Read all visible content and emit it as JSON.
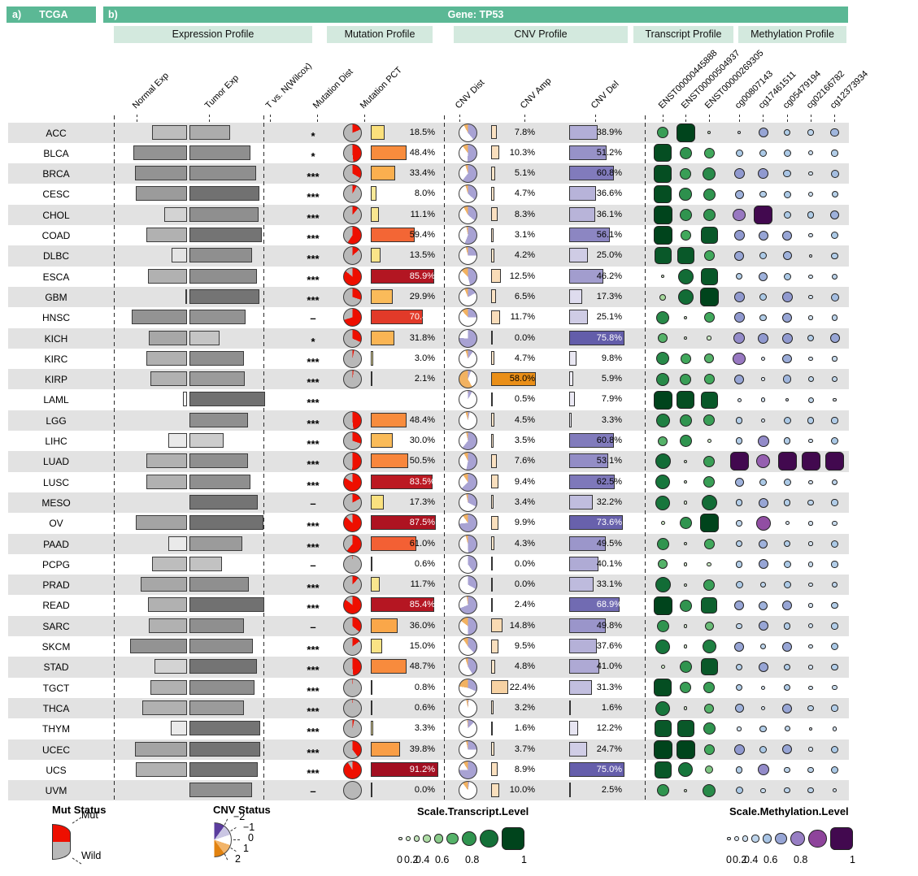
{
  "header": {
    "a_label": "a)",
    "a_title": "TCGA",
    "b_label": "b)",
    "b_title": "Gene: TP53"
  },
  "profiles": [
    {
      "label": "Expression Profile"
    },
    {
      "label": "Mutation Profile"
    },
    {
      "label": "CNV Profile"
    },
    {
      "label": "Transcript Profile"
    },
    {
      "label": "Methylation Profile"
    }
  ],
  "chart_data": {
    "type": "table",
    "title": "Gene: TP53",
    "dataset": "TCGA",
    "columns": [
      "Normal Exp",
      "Tumor Exp",
      "T vs. N(Wilcox)",
      "Mutation Dist",
      "Mutation PCT",
      "CNV Dist",
      "CNV Amp",
      "CNV Del",
      "ENST00000445888",
      "ENST00000504937",
      "ENST00000269305",
      "cg00807143",
      "cg17461511",
      "cg05479194",
      "cg02166782",
      "cg12373934"
    ],
    "rows": [
      {
        "label": "ACC",
        "sig": "*",
        "normal": [
          43,
          0.35
        ],
        "tumor": [
          50,
          0.45
        ],
        "mut_pct": 18.5,
        "cnv_amp": 7.8,
        "cnv_del": 38.9,
        "transcript": [
          0.55,
          1,
          0.07
        ],
        "methylation": [
          0.07,
          0.45,
          0.28,
          0.22,
          0.38
        ]
      },
      {
        "label": "BLCA",
        "sig": "*",
        "normal": [
          66,
          0.6
        ],
        "tumor": [
          75,
          0.62
        ],
        "mut_pct": 48.4,
        "cnv_amp": 10.3,
        "cnv_del": 51.2,
        "transcript": [
          0.95,
          0.6,
          0.5
        ],
        "methylation": [
          0.3,
          0.3,
          0.3,
          0.15,
          0.27
        ]
      },
      {
        "label": "BRCA",
        "sig": "***",
        "normal": [
          64,
          0.6
        ],
        "tumor": [
          82,
          0.62
        ],
        "mut_pct": 33.4,
        "cnv_amp": 5.1,
        "cnv_del": 60.8,
        "transcript": [
          0.95,
          0.55,
          0.65
        ],
        "methylation": [
          0.5,
          0.5,
          0.32,
          0.12,
          0.35
        ]
      },
      {
        "label": "CESC",
        "sig": "***",
        "normal": [
          63,
          0.55
        ],
        "tumor": [
          86,
          0.8
        ],
        "mut_pct": 8.0,
        "cnv_amp": 4.7,
        "cnv_del": 36.6,
        "transcript": [
          0.95,
          0.62,
          0.6
        ],
        "methylation": [
          0.4,
          0.27,
          0.3,
          0.15,
          0.25
        ]
      },
      {
        "label": "CHOL",
        "sig": "***",
        "normal": [
          28,
          0.22
        ],
        "tumor": [
          85,
          0.62
        ],
        "mut_pct": 11.1,
        "cnv_amp": 8.3,
        "cnv_del": 36.1,
        "transcript": [
          1,
          0.6,
          0.6
        ],
        "methylation": [
          0.62,
          1,
          0.3,
          0.28,
          0.4
        ]
      },
      {
        "label": "COAD",
        "sig": "***",
        "normal": [
          50,
          0.42
        ],
        "tumor": [
          89,
          0.78
        ],
        "mut_pct": 59.4,
        "cnv_amp": 3.1,
        "cnv_del": 56.1,
        "transcript": [
          1,
          0.5,
          0.9
        ],
        "methylation": [
          0.5,
          0.45,
          0.45,
          0.12,
          0.3
        ]
      },
      {
        "label": "DLBC",
        "sig": "***",
        "normal": [
          19,
          0.12
        ],
        "tumor": [
          77,
          0.62
        ],
        "mut_pct": 13.5,
        "cnv_amp": 4.2,
        "cnv_del": 25.0,
        "transcript": [
          0.9,
          0.9,
          0.5
        ],
        "methylation": [
          0.45,
          0.3,
          0.4,
          0.07,
          0.27
        ]
      },
      {
        "label": "ESCA",
        "sig": "***",
        "normal": [
          48,
          0.42
        ],
        "tumor": [
          83,
          0.62
        ],
        "mut_pct": 85.9,
        "cnv_amp": 12.5,
        "cnv_del": 46.2,
        "transcript": [
          0.07,
          0.8,
          0.9
        ],
        "methylation": [
          0.27,
          0.4,
          0.3,
          0.12,
          0.22
        ]
      },
      {
        "label": "GBM",
        "sig": "***",
        "normal": [
          2,
          0.42
        ],
        "tumor": [
          86,
          0.78
        ],
        "mut_pct": 29.9,
        "cnv_amp": 6.5,
        "cnv_del": 17.3,
        "transcript": [
          0.25,
          0.8,
          1
        ],
        "methylation": [
          0.5,
          0.3,
          0.5,
          0.12,
          0.35
        ]
      },
      {
        "label": "HNSC",
        "sig": "–",
        "normal": [
          68,
          0.6
        ],
        "tumor": [
          69,
          0.6
        ],
        "mut_pct": 70.4,
        "cnv_amp": 11.7,
        "cnv_del": 25.1,
        "transcript": [
          0.65,
          0.07,
          0.5
        ],
        "methylation": [
          0.5,
          0.27,
          0.45,
          0.12,
          0.22
        ]
      },
      {
        "label": "KICH",
        "sig": "*",
        "normal": [
          47,
          0.48
        ],
        "tumor": [
          37,
          0.3
        ],
        "mut_pct": 31.8,
        "cnv_amp": 0.0,
        "cnv_del": 75.8,
        "transcript": [
          0.45,
          0.07,
          0.12
        ],
        "methylation": [
          0.55,
          0.5,
          0.5,
          0.27,
          0.45
        ]
      },
      {
        "label": "KIRC",
        "sig": "***",
        "normal": [
          50,
          0.42
        ],
        "tumor": [
          67,
          0.62
        ],
        "mut_pct": 3.0,
        "cnv_amp": 4.7,
        "cnv_del": 9.8,
        "transcript": [
          0.65,
          0.5,
          0.45
        ],
        "methylation": [
          0.62,
          0.1,
          0.42,
          0.12,
          0.17
        ]
      },
      {
        "label": "KIRP",
        "sig": "***",
        "normal": [
          45,
          0.42
        ],
        "tumor": [
          68,
          0.55
        ],
        "mut_pct": 2.1,
        "cnv_amp": 58.0,
        "cnv_del": 5.9,
        "transcript": [
          0.65,
          0.55,
          0.5
        ],
        "methylation": [
          0.45,
          0.08,
          0.38,
          0.2,
          0.2
        ]
      },
      {
        "label": "LAML",
        "sig": "***",
        "normal": [
          5,
          0.03
        ],
        "tumor": [
          93,
          0.8
        ],
        "mut_pct": null,
        "cnv_amp": 0.5,
        "cnv_del": 7.9,
        "transcript": [
          1,
          0.95,
          0.9
        ],
        "methylation": [
          0.1,
          0.12,
          0.08,
          0.2,
          0.06
        ]
      },
      {
        "label": "LGG",
        "sig": "***",
        "normal": [
          0,
          0
        ],
        "tumor": [
          72,
          0.62
        ],
        "mut_pct": 48.4,
        "cnv_amp": 4.5,
        "cnv_del": 3.3,
        "transcript": [
          0.7,
          0.6,
          0.55
        ],
        "methylation": [
          0.27,
          0.12,
          0.3,
          0.27,
          0.27
        ]
      },
      {
        "label": "LIHC",
        "sig": "***",
        "normal": [
          23,
          0.08
        ],
        "tumor": [
          42,
          0.26
        ],
        "mut_pct": 30.0,
        "cnv_amp": 3.5,
        "cnv_del": 60.8,
        "transcript": [
          0.45,
          0.6,
          0.1
        ],
        "methylation": [
          0.27,
          0.55,
          0.27,
          0.12,
          0.3
        ]
      },
      {
        "label": "LUAD",
        "sig": "***",
        "normal": [
          50,
          0.42
        ],
        "tumor": [
          72,
          0.62
        ],
        "mut_pct": 50.5,
        "cnv_amp": 7.6,
        "cnv_del": 53.1,
        "transcript": [
          0.8,
          0.07,
          0.55
        ],
        "methylation": [
          1,
          0.7,
          1,
          1,
          1
        ]
      },
      {
        "label": "LUSC",
        "sig": "***",
        "normal": [
          50,
          0.42
        ],
        "tumor": [
          75,
          0.62
        ],
        "mut_pct": 83.5,
        "cnv_amp": 9.4,
        "cnv_del": 62.5,
        "transcript": [
          0.75,
          0.07,
          0.55
        ],
        "methylation": [
          0.4,
          0.3,
          0.3,
          0.12,
          0.22
        ]
      },
      {
        "label": "MESO",
        "sig": "–",
        "normal": [
          0,
          0
        ],
        "tumor": [
          84,
          0.78
        ],
        "mut_pct": 17.3,
        "cnv_amp": 3.4,
        "cnv_del": 32.2,
        "transcript": [
          0.75,
          0.07,
          0.8
        ],
        "methylation": [
          0.27,
          0.45,
          0.27,
          0.22,
          0.27
        ]
      },
      {
        "label": "OV",
        "sig": "***",
        "normal": [
          63,
          0.5
        ],
        "tumor": [
          91,
          0.8
        ],
        "mut_pct": 87.5,
        "cnv_amp": 9.9,
        "cnv_del": 73.6,
        "transcript": [
          0.1,
          0.6,
          1
        ],
        "methylation": [
          0.22,
          0.75,
          0.1,
          0.12,
          0.17
        ]
      },
      {
        "label": "PAAD",
        "sig": "***",
        "normal": [
          23,
          0.08
        ],
        "tumor": [
          65,
          0.55
        ],
        "mut_pct": 61.0,
        "cnv_amp": 4.3,
        "cnv_del": 49.5,
        "transcript": [
          0.6,
          0.07,
          0.5
        ],
        "methylation": [
          0.27,
          0.4,
          0.27,
          0.12,
          0.3
        ]
      },
      {
        "label": "PCPG",
        "sig": "–",
        "normal": [
          43,
          0.35
        ],
        "tumor": [
          40,
          0.32
        ],
        "mut_pct": 0.6,
        "cnv_amp": 0.0,
        "cnv_del": 40.1,
        "transcript": [
          0.45,
          0.07,
          0.12
        ],
        "methylation": [
          0.27,
          0.45,
          0.3,
          0.17,
          0.27
        ]
      },
      {
        "label": "PRAD",
        "sig": "***",
        "normal": [
          57,
          0.48
        ],
        "tumor": [
          73,
          0.62
        ],
        "mut_pct": 11.7,
        "cnv_amp": 0.0,
        "cnv_del": 33.1,
        "transcript": [
          0.8,
          0.07,
          0.55
        ],
        "methylation": [
          0.3,
          0.22,
          0.3,
          0.12,
          0.22
        ]
      },
      {
        "label": "READ",
        "sig": "***",
        "normal": [
          48,
          0.42
        ],
        "tumor": [
          92,
          0.8
        ],
        "mut_pct": 85.4,
        "cnv_amp": 2.4,
        "cnv_del": 68.9,
        "transcript": [
          1,
          0.6,
          0.85
        ],
        "methylation": [
          0.45,
          0.4,
          0.45,
          0.12,
          0.27
        ]
      },
      {
        "label": "SARC",
        "sig": "–",
        "normal": [
          47,
          0.42
        ],
        "tumor": [
          67,
          0.62
        ],
        "mut_pct": 36.0,
        "cnv_amp": 14.8,
        "cnv_del": 49.8,
        "transcript": [
          0.6,
          0.07,
          0.4
        ],
        "methylation": [
          0.22,
          0.45,
          0.27,
          0.15,
          0.27
        ]
      },
      {
        "label": "SKCM",
        "sig": "***",
        "normal": [
          70,
          0.6
        ],
        "tumor": [
          78,
          0.62
        ],
        "mut_pct": 15.0,
        "cnv_amp": 9.5,
        "cnv_del": 37.6,
        "transcript": [
          0.75,
          0.07,
          0.7
        ],
        "methylation": [
          0.45,
          0.22,
          0.45,
          0.12,
          0.3
        ]
      },
      {
        "label": "STAD",
        "sig": "***",
        "normal": [
          40,
          0.22
        ],
        "tumor": [
          83,
          0.78
        ],
        "mut_pct": 48.7,
        "cnv_amp": 4.8,
        "cnv_del": 41.0,
        "transcript": [
          0.1,
          0.6,
          0.9
        ],
        "methylation": [
          0.27,
          0.45,
          0.27,
          0.12,
          0.27
        ]
      },
      {
        "label": "TGCT",
        "sig": "***",
        "normal": [
          45,
          0.42
        ],
        "tumor": [
          80,
          0.62
        ],
        "mut_pct": 0.8,
        "cnv_amp": 22.4,
        "cnv_del": 31.3,
        "transcript": [
          0.95,
          0.55,
          0.55
        ],
        "methylation": [
          0.27,
          0.12,
          0.27,
          0.12,
          0.17
        ]
      },
      {
        "label": "THCA",
        "sig": "***",
        "normal": [
          55,
          0.42
        ],
        "tumor": [
          67,
          0.55
        ],
        "mut_pct": 0.6,
        "cnv_amp": 3.2,
        "cnv_del": 1.6,
        "transcript": [
          0.75,
          0.07,
          0.45
        ],
        "methylation": [
          0.4,
          0.12,
          0.45,
          0.22,
          0.27
        ]
      },
      {
        "label": "THYM",
        "sig": "***",
        "normal": [
          20,
          0.08
        ],
        "tumor": [
          87,
          0.78
        ],
        "mut_pct": 3.3,
        "cnv_amp": 1.6,
        "cnv_del": 12.2,
        "transcript": [
          0.9,
          0.9,
          0.6
        ],
        "methylation": [
          0.12,
          0.27,
          0.2,
          0.08,
          0.12
        ]
      },
      {
        "label": "UCEC",
        "sig": "***",
        "normal": [
          64,
          0.5
        ],
        "tumor": [
          87,
          0.78
        ],
        "mut_pct": 39.8,
        "cnv_amp": 3.7,
        "cnv_del": 24.7,
        "transcript": [
          1,
          1,
          0.5
        ],
        "methylation": [
          0.5,
          0.3,
          0.45,
          0.12,
          0.3
        ]
      },
      {
        "label": "UCS",
        "sig": "***",
        "normal": [
          63,
          0.42
        ],
        "tumor": [
          84,
          0.78
        ],
        "mut_pct": 91.2,
        "cnv_amp": 8.9,
        "cnv_del": 75.0,
        "transcript": [
          0.9,
          0.75,
          0.35
        ],
        "methylation": [
          0.27,
          0.55,
          0.22,
          0.22,
          0.3
        ]
      },
      {
        "label": "UVM",
        "sig": "–",
        "normal": [
          0,
          0
        ],
        "tumor": [
          77,
          0.62
        ],
        "mut_pct": 0.0,
        "cnv_amp": 10.0,
        "cnv_del": 2.5,
        "transcript": [
          0.6,
          0.07,
          0.65
        ],
        "methylation": [
          0.3,
          0.17,
          0.22,
          0.22,
          0.12
        ]
      }
    ]
  },
  "legend": {
    "mut": {
      "title": "Mut Status",
      "mut_label": "Mut",
      "wild_label": "Wild"
    },
    "cnv": {
      "title": "CNV Status",
      "values": [
        "−2",
        "−1",
        "0",
        "1",
        "2"
      ]
    },
    "transcript": {
      "title": "Scale.Transcript.Level",
      "ticks": [
        "0",
        "0.2",
        "0.4",
        "0.6",
        "0.8",
        "1"
      ]
    },
    "methylation": {
      "title": "Scale.Methylation.Level",
      "ticks": [
        "0",
        "0.2",
        "0.4",
        "0.6",
        "0.8",
        "1"
      ]
    }
  },
  "colors": {
    "teal_dark": "#5bb895",
    "teal_light": "#d3e9de",
    "stripe": "#e2e2e2",
    "mut_red": "#ee0f00",
    "pie_gray": "#b8b8b8",
    "outline": "#3c3c3c",
    "cnv_del_slice": "#a8a2d3",
    "cnv_amp_slice": "#f2b261",
    "legend_cnv": [
      "#5b3d9e",
      "#cac6e3",
      "#ffffff",
      "#f2b469",
      "#e2820f"
    ],
    "exp_gray_scale": [
      [
        0,
        "#f8f8f8"
      ],
      [
        1,
        "#4f4f4f"
      ]
    ],
    "mut_scale": [
      [
        0,
        "#f7efad"
      ],
      [
        0.2,
        "#fbdf78"
      ],
      [
        0.35,
        "#faa94a"
      ],
      [
        0.5,
        "#f8883c"
      ],
      [
        0.62,
        "#f25c33"
      ],
      [
        0.75,
        "#d92723"
      ],
      [
        0.9,
        "#a50f21"
      ],
      [
        1,
        "#8f0e1e"
      ]
    ],
    "amp_scale": [
      [
        0,
        "#fbe9d2"
      ],
      [
        0.25,
        "#f7cf9e"
      ],
      [
        0.45,
        "#f2a94e"
      ],
      [
        0.6,
        "#e98b10"
      ],
      [
        1,
        "#d97706"
      ]
    ],
    "del_scale": [
      [
        0,
        "#f6f5fa"
      ],
      [
        0.15,
        "#e3e1f0"
      ],
      [
        0.3,
        "#c5c2e0"
      ],
      [
        0.45,
        "#a5a0d0"
      ],
      [
        0.6,
        "#837dbd"
      ],
      [
        0.78,
        "#5f58a7"
      ],
      [
        1,
        "#4a4399"
      ]
    ],
    "transcript_scale": [
      [
        0,
        "#eaf6e5"
      ],
      [
        0.25,
        "#a6d89c"
      ],
      [
        0.5,
        "#41a85c"
      ],
      [
        0.75,
        "#17763c"
      ],
      [
        1,
        "#00441c"
      ]
    ],
    "methylation_scale": [
      [
        0,
        "#edf2f7"
      ],
      [
        0.3,
        "#abc9e6"
      ],
      [
        0.5,
        "#9099cf"
      ],
      [
        0.65,
        "#9a70bd"
      ],
      [
        0.8,
        "#8c3d96"
      ],
      [
        1,
        "#42094f"
      ]
    ]
  }
}
